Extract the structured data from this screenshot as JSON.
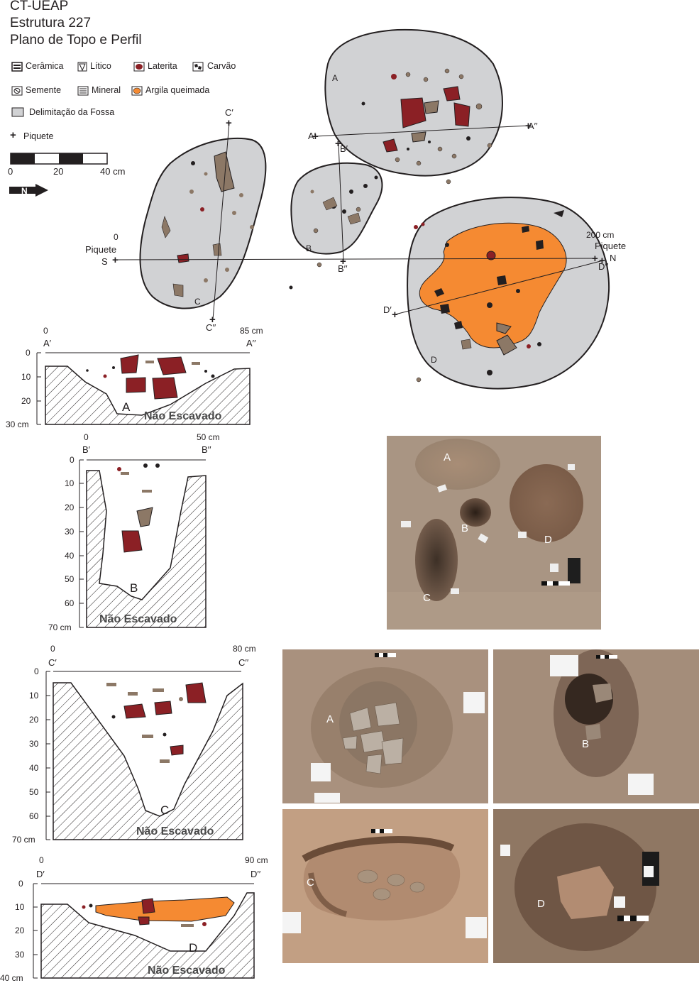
{
  "title": {
    "line1": "CT-UEAP",
    "line2": "Estrutura 227",
    "line3": "Plano de Topo e Perfil"
  },
  "legend": {
    "ceramica": "Cerâmica",
    "litico": "Lítico",
    "laterita": "Laterita",
    "carvao": "Carvão",
    "semente": "Semente",
    "mineral": "Mineral",
    "argila": "Argila queimada",
    "fossa": "Delimitação da Fossa",
    "piquete": "Piquete"
  },
  "scale": {
    "t0": "0",
    "t20": "20",
    "t40": "40 cm"
  },
  "colors": {
    "fossa": "#d1d2d4",
    "ceramica": "#8c7866",
    "laterita": "#8b2025",
    "argila": "#f58a32",
    "carvao": "#231f20"
  },
  "plan": {
    "pit_A": "A",
    "pit_B": "B",
    "pit_C": "C",
    "pit_D": "D",
    "a1": "A′",
    "a2": "A′′",
    "b1": "B′",
    "b2": "B′′",
    "c1": "C′",
    "c2": "C′′",
    "d1": "D′",
    "d2": "D′′",
    "zero": "0",
    "piq_s_1": "Piquete",
    "piq_s_2": "S",
    "len": "200 cm",
    "piq_n_1": "Piquete",
    "piq_n_2": "N"
  },
  "profiles": {
    "not_excavated": "Não Escavado",
    "A": {
      "label": "A",
      "left": "A′",
      "right": "A′′",
      "start": "0",
      "end": "85 cm",
      "depths": [
        "0",
        "10",
        "20",
        "30 cm"
      ]
    },
    "B": {
      "label": "B",
      "left": "B′",
      "right": "B′′",
      "start": "0",
      "end": "50 cm",
      "depths": [
        "0",
        "10",
        "20",
        "30",
        "40",
        "50",
        "60",
        "70 cm"
      ]
    },
    "C": {
      "label": "C",
      "left": "C′",
      "right": "C′′",
      "start": "0",
      "end": "80 cm",
      "depths": [
        "0",
        "10",
        "20",
        "30",
        "40",
        "50",
        "60",
        "70 cm"
      ]
    },
    "D": {
      "label": "D",
      "left": "D′",
      "right": "D′′",
      "start": "0",
      "end": "90 cm",
      "depths": [
        "0",
        "10",
        "20",
        "30",
        "40 cm"
      ]
    }
  },
  "photos": {
    "overview": {
      "A": "A",
      "B": "B",
      "C": "C",
      "D": "D"
    },
    "pA": "A",
    "pB": "B",
    "pC": "C",
    "pD": "D"
  }
}
